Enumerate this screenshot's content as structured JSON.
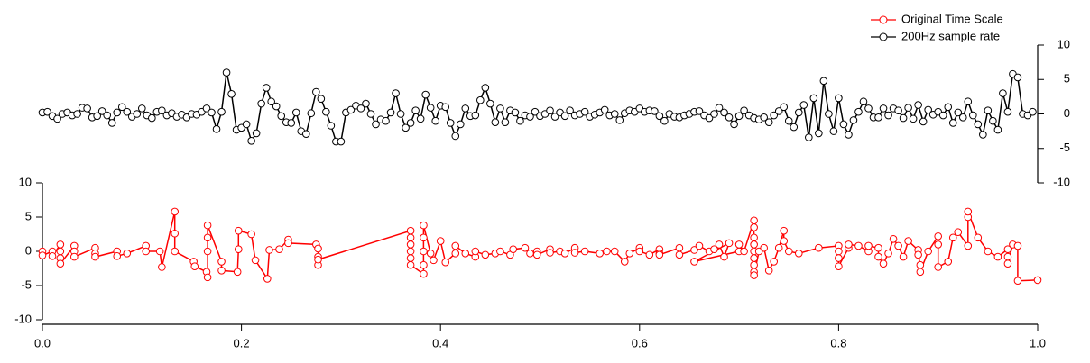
{
  "chart_data": {
    "type": "line",
    "xlim": [
      0,
      1
    ],
    "xticks": [
      {
        "value": 0,
        "label": "0.0"
      },
      0.2,
      0.4,
      0.6,
      0.8,
      {
        "value": 1,
        "label": "1.0"
      }
    ],
    "ylim": [
      -10,
      10
    ],
    "yticks": [
      -10,
      -5,
      0,
      5,
      10
    ],
    "y2lim": [
      -10,
      10
    ],
    "y2ticks": [
      -10,
      -5,
      0,
      5,
      10
    ],
    "legend": "upper right",
    "series": [
      {
        "name": "Original Time Scale",
        "color": "#ff0000",
        "x": [
          0,
          0,
          0.01,
          0.01,
          0.018,
          0.018,
          0.018,
          0.018,
          0.032,
          0.032,
          0.032,
          0.053,
          0.053,
          0.053,
          0.075,
          0.075,
          0.085,
          0.104,
          0.104,
          0.118,
          0.12,
          0.133,
          0.133,
          0.133,
          0.152,
          0.153,
          0.165,
          0.166,
          0.166,
          0.166,
          0.166,
          0.18,
          0.18,
          0.196,
          0.197,
          0.197,
          0.21,
          0.214,
          0.226,
          0.228,
          0.238,
          0.247,
          0.247,
          0.275,
          0.277,
          0.277,
          0.277,
          0.277,
          0.37,
          0.37,
          0.37,
          0.37,
          0.37,
          0.37,
          0.383,
          0.383,
          0.383,
          0.383,
          0.383,
          0.39,
          0.393,
          0.4,
          0.405,
          0.415,
          0.415,
          0.425,
          0.435,
          0.435,
          0.445,
          0.455,
          0.46,
          0.47,
          0.473,
          0.485,
          0.49,
          0.497,
          0.497,
          0.51,
          0.51,
          0.52,
          0.525,
          0.535,
          0.535,
          0.545,
          0.56,
          0.567,
          0.575,
          0.585,
          0.59,
          0.6,
          0.6,
          0.61,
          0.62,
          0.62,
          0.62,
          0.64,
          0.64,
          0.655,
          0.66,
          0.67,
          0.675,
          0.68,
          0.685,
          0.69,
          0.655,
          0.7,
          0.7,
          0.705,
          0.715,
          0.715,
          0.715,
          0.715,
          0.715,
          0.715,
          0.715,
          0.715,
          0.715,
          0.72,
          0.725,
          0.73,
          0.735,
          0.74,
          0.745,
          0.745,
          0.75,
          0.76,
          0.78,
          0.8,
          0.8,
          0.8,
          0.8,
          0.81,
          0.81,
          0.82,
          0.83,
          0.83,
          0.84,
          0.84,
          0.845,
          0.85,
          0.855,
          0.86,
          0.865,
          0.87,
          0.88,
          0.88,
          0.882,
          0.882,
          0.89,
          0.9,
          0.9,
          0.9,
          0.91,
          0.915,
          0.92,
          0.93,
          0.93,
          0.93,
          0.94,
          0.95,
          0.96,
          0.97,
          0.97,
          0.97,
          0.975,
          0.98,
          0.98,
          1.0
        ],
        "values": [
          0,
          -0.6,
          0,
          -0.7,
          1,
          0,
          -1,
          -1.8,
          0.8,
          0,
          -0.8,
          0.5,
          -0.3,
          -0.8,
          0,
          -0.7,
          -0.3,
          0.8,
          0,
          0,
          -2.3,
          5.8,
          2.6,
          0,
          -1.5,
          -2.2,
          -3,
          -3.8,
          0,
          2,
          3.8,
          -1.5,
          -2.8,
          -3,
          0.3,
          3,
          2.5,
          -1.3,
          -4,
          0.2,
          0.3,
          1.7,
          1.2,
          1,
          0.4,
          -0.8,
          -2,
          -1.2,
          3,
          2,
          1,
          0,
          -1,
          -2,
          -3.3,
          -2,
          0,
          2,
          3.8,
          -0.3,
          -1.3,
          1.5,
          -1.6,
          -0.3,
          0.8,
          -0.3,
          -0.8,
          0,
          -0.5,
          -0.3,
          0,
          -0.5,
          0.3,
          0.5,
          -0.3,
          0,
          -0.5,
          0.3,
          -0.2,
          0,
          -0.3,
          0.5,
          -0.2,
          0,
          -0.3,
          0,
          0,
          -1.5,
          -0.3,
          0.5,
          0,
          -0.5,
          0.3,
          -0.3,
          -0.5,
          0.5,
          -0.5,
          0.2,
          0.8,
          0,
          0.3,
          1,
          -0.8,
          1.2,
          -1.5,
          0,
          1,
          0,
          4.5,
          3.5,
          2,
          1,
          0,
          -1,
          -2,
          -3,
          -3.5,
          0,
          0.5,
          -2.8,
          -1.5,
          0.5,
          3,
          1.5,
          0,
          -0.3,
          0.5,
          0.8,
          0,
          -1,
          -2.2,
          0.5,
          1,
          0.8,
          0,
          0.8,
          0.5,
          -0.8,
          -1.8,
          -0.3,
          1.8,
          0.8,
          -0.8,
          1.5,
          0.2,
          -0.5,
          -2,
          -3,
          0,
          2.2,
          1,
          -2.3,
          -1.5,
          2,
          2.8,
          0.8,
          5,
          5.8,
          2,
          0,
          -0.8,
          0.3,
          -0.8,
          -1.8,
          1,
          0.8,
          -4.3,
          -4.2
        ]
      },
      {
        "name": "200Hz sample rate",
        "color": "#000000",
        "axis": "y2",
        "x": [
          0,
          0.005,
          0.01,
          0.015,
          0.02,
          0.025,
          0.03,
          0.035,
          0.04,
          0.045,
          0.05,
          0.055,
          0.06,
          0.065,
          0.07,
          0.075,
          0.08,
          0.085,
          0.09,
          0.095,
          0.1,
          0.105,
          0.11,
          0.115,
          0.12,
          0.125,
          0.13,
          0.135,
          0.14,
          0.145,
          0.15,
          0.155,
          0.16,
          0.165,
          0.17,
          0.175,
          0.18,
          0.185,
          0.19,
          0.195,
          0.2,
          0.205,
          0.21,
          0.215,
          0.22,
          0.225,
          0.23,
          0.235,
          0.24,
          0.245,
          0.25,
          0.255,
          0.26,
          0.265,
          0.27,
          0.275,
          0.28,
          0.285,
          0.29,
          0.295,
          0.3,
          0.305,
          0.31,
          0.315,
          0.32,
          0.325,
          0.33,
          0.335,
          0.34,
          0.345,
          0.35,
          0.355,
          0.36,
          0.365,
          0.37,
          0.375,
          0.38,
          0.385,
          0.39,
          0.395,
          0.4,
          0.405,
          0.41,
          0.415,
          0.42,
          0.425,
          0.43,
          0.435,
          0.44,
          0.445,
          0.45,
          0.455,
          0.46,
          0.465,
          0.47,
          0.475,
          0.48,
          0.485,
          0.49,
          0.495,
          0.5,
          0.505,
          0.51,
          0.515,
          0.52,
          0.525,
          0.53,
          0.535,
          0.54,
          0.545,
          0.55,
          0.555,
          0.56,
          0.565,
          0.57,
          0.575,
          0.58,
          0.585,
          0.59,
          0.595,
          0.6,
          0.605,
          0.61,
          0.615,
          0.62,
          0.625,
          0.63,
          0.635,
          0.64,
          0.645,
          0.65,
          0.655,
          0.66,
          0.665,
          0.67,
          0.675,
          0.68,
          0.685,
          0.69,
          0.695,
          0.7,
          0.705,
          0.71,
          0.715,
          0.72,
          0.725,
          0.73,
          0.735,
          0.74,
          0.745,
          0.75,
          0.755,
          0.76,
          0.765,
          0.77,
          0.775,
          0.78,
          0.785,
          0.79,
          0.795,
          0.8,
          0.805,
          0.81,
          0.815,
          0.82,
          0.825,
          0.83,
          0.835,
          0.84,
          0.845,
          0.85,
          0.855,
          0.86,
          0.865,
          0.87,
          0.875,
          0.88,
          0.885,
          0.89,
          0.895,
          0.9,
          0.905,
          0.91,
          0.915,
          0.92,
          0.925,
          0.93,
          0.935,
          0.94,
          0.945,
          0.95,
          0.955,
          0.96,
          0.965,
          0.97,
          0.975,
          0.98,
          0.985,
          0.99,
          0.995
        ],
        "values": [
          0.2,
          0.3,
          -0.3,
          -0.7,
          0,
          0.2,
          -0.2,
          0,
          0.9,
          0.8,
          -0.5,
          -0.3,
          0.4,
          -0.2,
          -1.3,
          0.2,
          1,
          0.3,
          -0.4,
          0,
          0.8,
          -0.2,
          -0.6,
          0.3,
          0.5,
          -0.2,
          0.1,
          -0.4,
          -0.1,
          -0.5,
          0,
          -0.1,
          0.3,
          0.8,
          0.2,
          -2.2,
          0.3,
          6,
          2.9,
          -2.3,
          -2,
          -1.5,
          -3.9,
          -2.8,
          1.5,
          3.8,
          1.8,
          1.1,
          -0.3,
          -1.2,
          -1.3,
          0.2,
          -2.5,
          -2.9,
          0.1,
          3.2,
          2.2,
          0.3,
          -1.7,
          -4,
          -4,
          0.2,
          0.6,
          1.2,
          0.8,
          1.5,
          0,
          -1.5,
          -0.8,
          -1,
          0.2,
          3,
          0,
          -2,
          -1.3,
          0.5,
          -0.7,
          2.8,
          0.9,
          -1,
          1.2,
          1,
          -1.3,
          -3.2,
          -1.5,
          0.8,
          -0.3,
          -0.2,
          2,
          3.8,
          1.5,
          -1.2,
          0.8,
          -1.2,
          0.5,
          0.2,
          -1,
          -0.2,
          -0.4,
          0.3,
          -0.3,
          0,
          0.5,
          -0.4,
          0.2,
          -0.3,
          0.5,
          -0.2,
          0,
          0.3,
          -0.4,
          -0.1,
          0.2,
          0.6,
          -0.2,
          0,
          -0.9,
          0.1,
          0.5,
          0.3,
          0.8,
          0.3,
          0.5,
          0.4,
          -0.3,
          -1,
          0,
          -0.4,
          -0.5,
          -0.2,
          0,
          0.3,
          0.4,
          -0.2,
          -0.6,
          0,
          0.9,
          0.2,
          -0.5,
          -1.5,
          -0.3,
          0.5,
          -0.2,
          -0.6,
          -0.8,
          -0.5,
          -1.2,
          -0.2,
          0.4,
          1,
          -1,
          -1.9,
          0.2,
          1.3,
          -3.4,
          2.3,
          -2.8,
          4.8,
          0,
          -2.5,
          2.3,
          -1.5,
          -3,
          -0.9,
          0.3,
          1.8,
          0.8,
          -0.5,
          -0.5,
          0.8,
          -0.2,
          0.8,
          0.5,
          -0.6,
          0.9,
          -0.7,
          1.3,
          -1.1,
          0.6,
          -0.1,
          0.3,
          -0.2,
          1,
          -1.3,
          0.2,
          -0.5,
          1.8,
          -0.2,
          -1.5,
          -3,
          0.5,
          -1,
          -2.3,
          3,
          0.3,
          5.8,
          5.3,
          0,
          -0.2,
          0.3
        ]
      }
    ]
  }
}
